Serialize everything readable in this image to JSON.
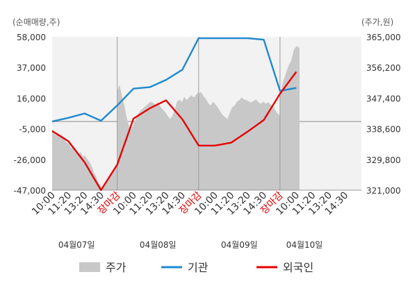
{
  "chart_data": {
    "type": "line",
    "left_axis_unit": "(순매매량,주)",
    "right_axis_unit": "(주가,원)",
    "left_ticks": [
      "58,000",
      "37,000",
      "16,000",
      "-5,000",
      "-26,000",
      "-47,000"
    ],
    "right_ticks": [
      "365,000",
      "356,200",
      "347,400",
      "338,600",
      "329,800",
      "321,000"
    ],
    "ylim_left": [
      -47000,
      58000
    ],
    "ylim_right": [
      321000,
      365000
    ],
    "x_labels": [
      "10:00",
      "11:20",
      "13:20",
      "14:30",
      "장마감",
      "10:00",
      "11:20",
      "13:20",
      "14:30",
      "장마감",
      "10:00",
      "11:20",
      "13:20",
      "14:30",
      "장마감",
      "10:00",
      "11:20",
      "13:20",
      "14:30"
    ],
    "close_label_color": "#e60000",
    "dates": [
      "04월07일",
      "04월08일",
      "04월09일",
      "04월10일"
    ],
    "series": [
      {
        "name": "기관",
        "color": "#1e88d0",
        "x": [
          0,
          1,
          2,
          3,
          4,
          5,
          6,
          7,
          8,
          9,
          10,
          11,
          12,
          13,
          14,
          15
        ],
        "values": [
          0,
          2500,
          5500,
          500,
          11000,
          22500,
          23500,
          28500,
          35500,
          57000,
          57000,
          57000,
          57000,
          56000,
          21000,
          23000
        ]
      },
      {
        "name": "외국인",
        "color": "#e60000",
        "x": [
          0,
          1,
          2,
          3,
          4,
          5,
          6,
          7,
          8,
          9,
          10,
          11,
          12,
          13,
          14,
          15
        ],
        "values": [
          -6500,
          -13500,
          -28000,
          -47000,
          -29500,
          2000,
          9000,
          14500,
          1500,
          -16500,
          -16500,
          -14500,
          -7000,
          1000,
          19000,
          34000
        ]
      }
    ],
    "price_series": {
      "name": "주가",
      "color": "#c8c8c8",
      "segments": [
        {
          "x_start": 0,
          "x_end": 4,
          "values": [
            338600,
            337200,
            336800,
            337600,
            336200,
            337000,
            335800,
            335000,
            334600,
            334200,
            333000,
            333800,
            332200,
            331800,
            331400,
            332000,
            330600,
            331000,
            330200,
            329400,
            328600,
            327400,
            325800,
            325000,
            323400,
            322600,
            321600,
            321800,
            322800,
            323400,
            324600,
            325600,
            326400,
            327400,
            328600
          ]
        },
        {
          "x_start": 4,
          "x_end": 9,
          "values": [
            349400,
            351200,
            347800,
            345200,
            341600,
            339200,
            338400,
            340200,
            341800,
            343200,
            344000,
            344600,
            345200,
            345800,
            346400,
            346000,
            345600,
            346200,
            345000,
            344200,
            343400,
            342400,
            341400,
            342200,
            344000,
            346400,
            347000,
            346200,
            347800,
            346800,
            347600,
            348200,
            347600,
            348400,
            349200
          ]
        },
        {
          "x_start": 9,
          "x_end": 14,
          "values": [
            348600,
            349200,
            348000,
            347200,
            346000,
            345200,
            346400,
            345600,
            344800,
            343600,
            342600,
            342000,
            341400,
            343200,
            344800,
            345200,
            346400,
            346800,
            347600,
            347000,
            346800,
            346400,
            346200,
            346600,
            347000,
            346200,
            345800,
            346400,
            345800,
            346200,
            345600,
            345000,
            344000,
            343000,
            342400
          ]
        },
        {
          "x_start": 14,
          "x_end": 15.2,
          "values": [
            347600,
            352000,
            354200,
            356600,
            358200,
            361400,
            362400,
            361800
          ]
        }
      ]
    },
    "legend": [
      {
        "label": "주가",
        "kind": "area",
        "color": "#c8c8c8"
      },
      {
        "label": "기관",
        "kind": "line",
        "color": "#1e88d0"
      },
      {
        "label": "외국인",
        "kind": "line",
        "color": "#e60000"
      }
    ],
    "legend_position": "bottom",
    "grid": false
  }
}
